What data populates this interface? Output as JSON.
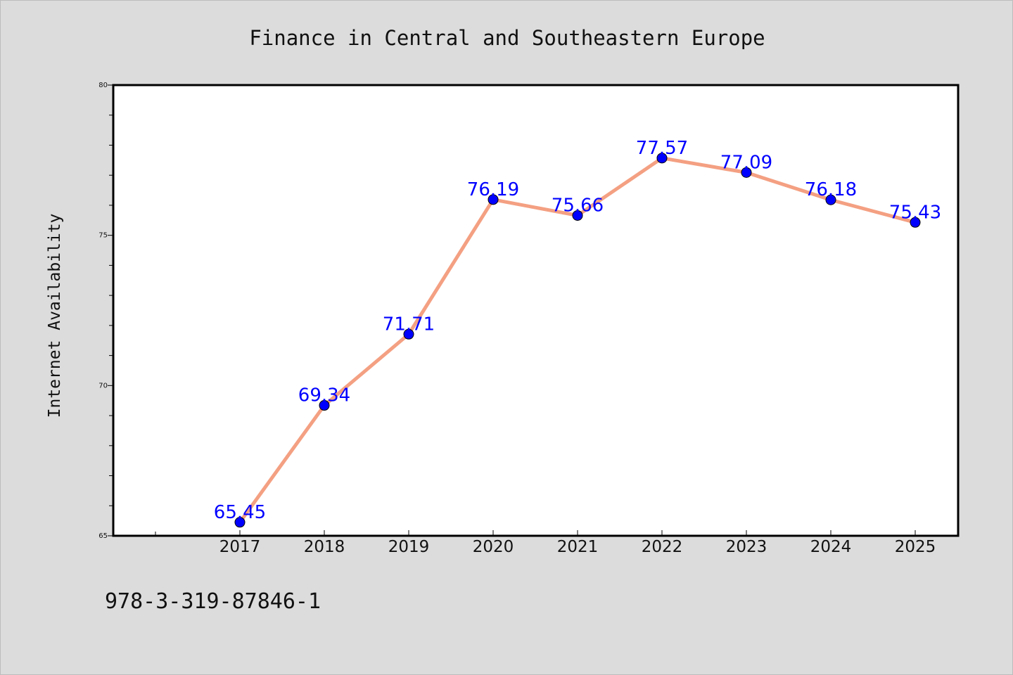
{
  "chart_data": {
    "type": "line",
    "title": "Finance in Central and Southeastern Europe",
    "xlabel": "",
    "ylabel": "Internet Availability",
    "categories": [
      "2017",
      "2018",
      "2019",
      "2020",
      "2021",
      "2022",
      "2023",
      "2024",
      "2025"
    ],
    "values": [
      65.45,
      69.34,
      71.71,
      76.19,
      75.66,
      77.57,
      77.09,
      76.18,
      75.43
    ],
    "data_labels": [
      "65.45",
      "69.34",
      "71.71",
      "76.19",
      "75.66",
      "77.57",
      "77.09",
      "76.18",
      "75.43"
    ],
    "ylim": [
      65,
      80
    ],
    "yticks": [
      "65",
      "70",
      "75",
      "80"
    ],
    "grid": false,
    "legend": "none",
    "line_color": "#f4a082",
    "marker_color": "#0000ff",
    "label_color": "#0000ff",
    "background_color": "#dcdcdc",
    "plot_background": "#ffffff"
  },
  "footer": {
    "identifier": "978-3-319-87846-1"
  }
}
